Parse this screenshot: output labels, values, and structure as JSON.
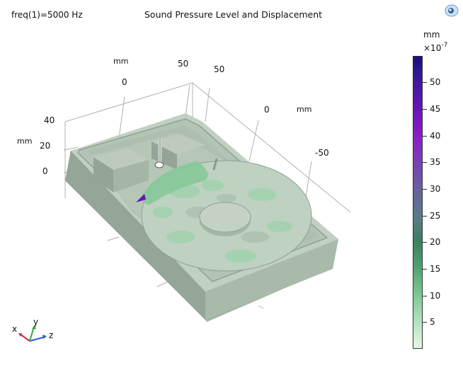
{
  "header": {
    "freq_label": "freq(1)=5000 Hz",
    "title": "Sound Pressure Level and Displacement"
  },
  "axes": {
    "z_unit": "mm",
    "z_ticks": [
      "40",
      "20",
      "0"
    ],
    "x_unit": "mm",
    "x_ticks": [
      "0",
      "50"
    ],
    "y_unit": "mm",
    "y_ticks": [
      "50",
      "0",
      "-50"
    ]
  },
  "colorbar": {
    "unit": "mm",
    "exponent_base": "×10",
    "exponent": "-7",
    "tick_labels": [
      "50",
      "45",
      "40",
      "35",
      "30",
      "25",
      "20",
      "15",
      "10",
      "5"
    ]
  },
  "triad": {
    "x": "x",
    "y": "y",
    "z": "z"
  },
  "colors": {
    "model_surface": "#b7c7b8",
    "model_dark": "#8fa293",
    "highlight_green": "#5fb57a",
    "peak_purple": "#6a14b8"
  }
}
